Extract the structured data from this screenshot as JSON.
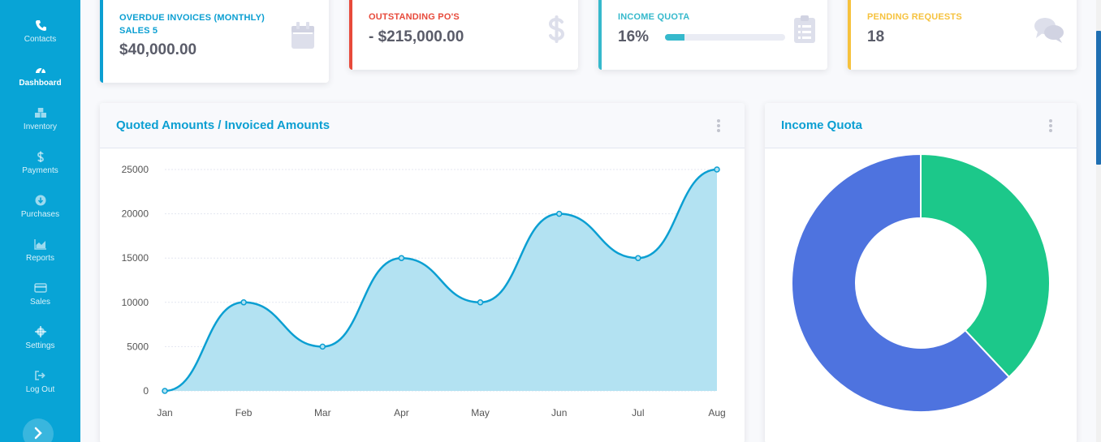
{
  "sidebar": {
    "items": [
      {
        "label": "Contacts",
        "icon": "phone-icon"
      },
      {
        "label": "Dashboard",
        "icon": "tachometer-icon",
        "active": true
      },
      {
        "label": "Inventory",
        "icon": "boxes-icon"
      },
      {
        "label": "Payments",
        "icon": "dollar-icon"
      },
      {
        "label": "Purchases",
        "icon": "arrow-circle-down-icon"
      },
      {
        "label": "Reports",
        "icon": "area-chart-icon"
      },
      {
        "label": "Sales",
        "icon": "credit-card-icon"
      },
      {
        "label": "Settings",
        "icon": "gear-icon"
      },
      {
        "label": "Log Out",
        "icon": "sign-out-icon"
      }
    ],
    "toggle_icon": "chevron-right-icon"
  },
  "stats": {
    "overdue": {
      "title": "Overdue Invoices (Monthly) Sales 5",
      "value": "$40,000.00",
      "color": "#0b9fd2",
      "icon": "calendar-icon"
    },
    "outstanding": {
      "title": "Outstanding PO's",
      "value": "- $215,000.00",
      "color": "#e74a3b",
      "icon": "dollar-sign-icon"
    },
    "income_quota": {
      "title": "Income Quota",
      "value": "16%",
      "progress": 0.16,
      "color": "#36b9cc",
      "icon": "clipboard-list-icon"
    },
    "pending": {
      "title": "Pending Requests",
      "value": "18",
      "color": "#f6c23e",
      "icon": "comments-icon"
    }
  },
  "area_panel": {
    "title": "Quoted Amounts / Invoiced Amounts"
  },
  "donut_panel": {
    "title": "Income Quota"
  },
  "chart_data": [
    {
      "type": "area",
      "categories": [
        "Jan",
        "Feb",
        "Mar",
        "Apr",
        "May",
        "Jun",
        "Jul",
        "Aug"
      ],
      "values": [
        0,
        10000,
        5000,
        15000,
        10000,
        20000,
        15000,
        25000
      ],
      "yticks": [
        0,
        5000,
        10000,
        15000,
        20000,
        25000
      ],
      "ylim": [
        0,
        25000
      ],
      "line_color": "#0b9fd2",
      "fill_color": "#b3e2f2",
      "grid": true
    },
    {
      "type": "pie",
      "donut": true,
      "values": [
        38,
        62
      ],
      "colors": [
        "#1cc88a",
        "#4e73df"
      ]
    }
  ]
}
